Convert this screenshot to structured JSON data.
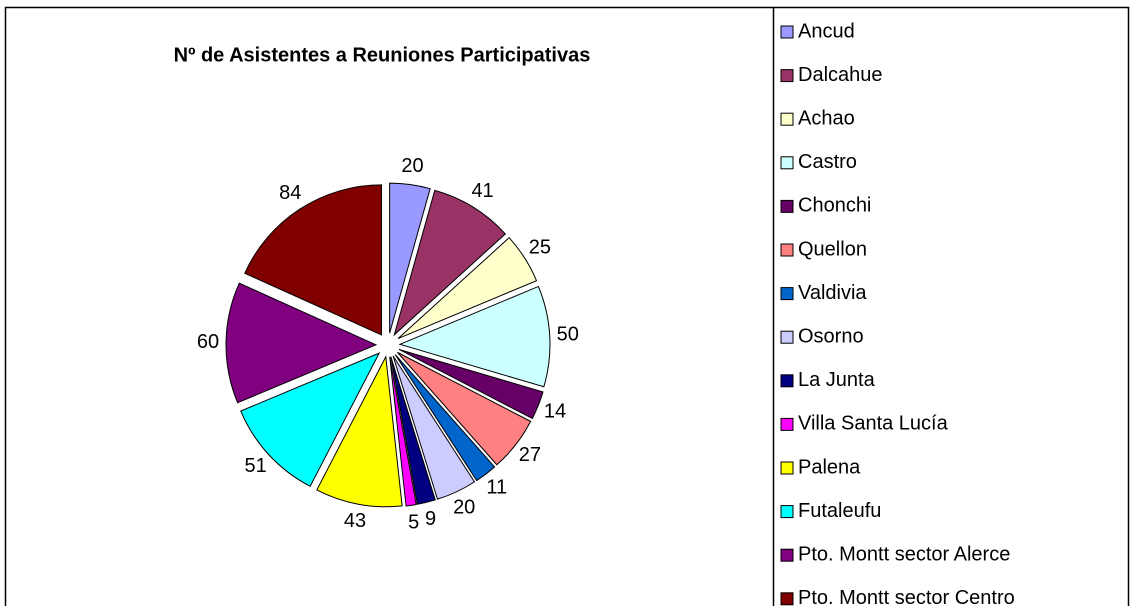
{
  "chart_data": {
    "type": "pie",
    "title": "Nº de Asistentes a Reuniones Participativas",
    "categories": [
      "Ancud",
      "Dalcahue",
      "Achao",
      "Castro",
      "Chonchi",
      "Quellon",
      "Valdivia",
      "Osorno",
      "La Junta",
      "Villa Santa Lucía",
      "Palena",
      "Futaleufu",
      "Pto. Montt sector Alerce",
      "Pto. Montt sector Centro"
    ],
    "values": [
      20,
      41,
      25,
      50,
      14,
      27,
      11,
      20,
      9,
      5,
      43,
      51,
      60,
      84
    ],
    "colors": [
      "#9999ff",
      "#993366",
      "#ffffcc",
      "#ccffff",
      "#660066",
      "#ff8080",
      "#0066cc",
      "#ccccff",
      "#000080",
      "#ff00ff",
      "#ffff00",
      "#00ffff",
      "#800080",
      "#800000"
    ],
    "legend": "right"
  }
}
